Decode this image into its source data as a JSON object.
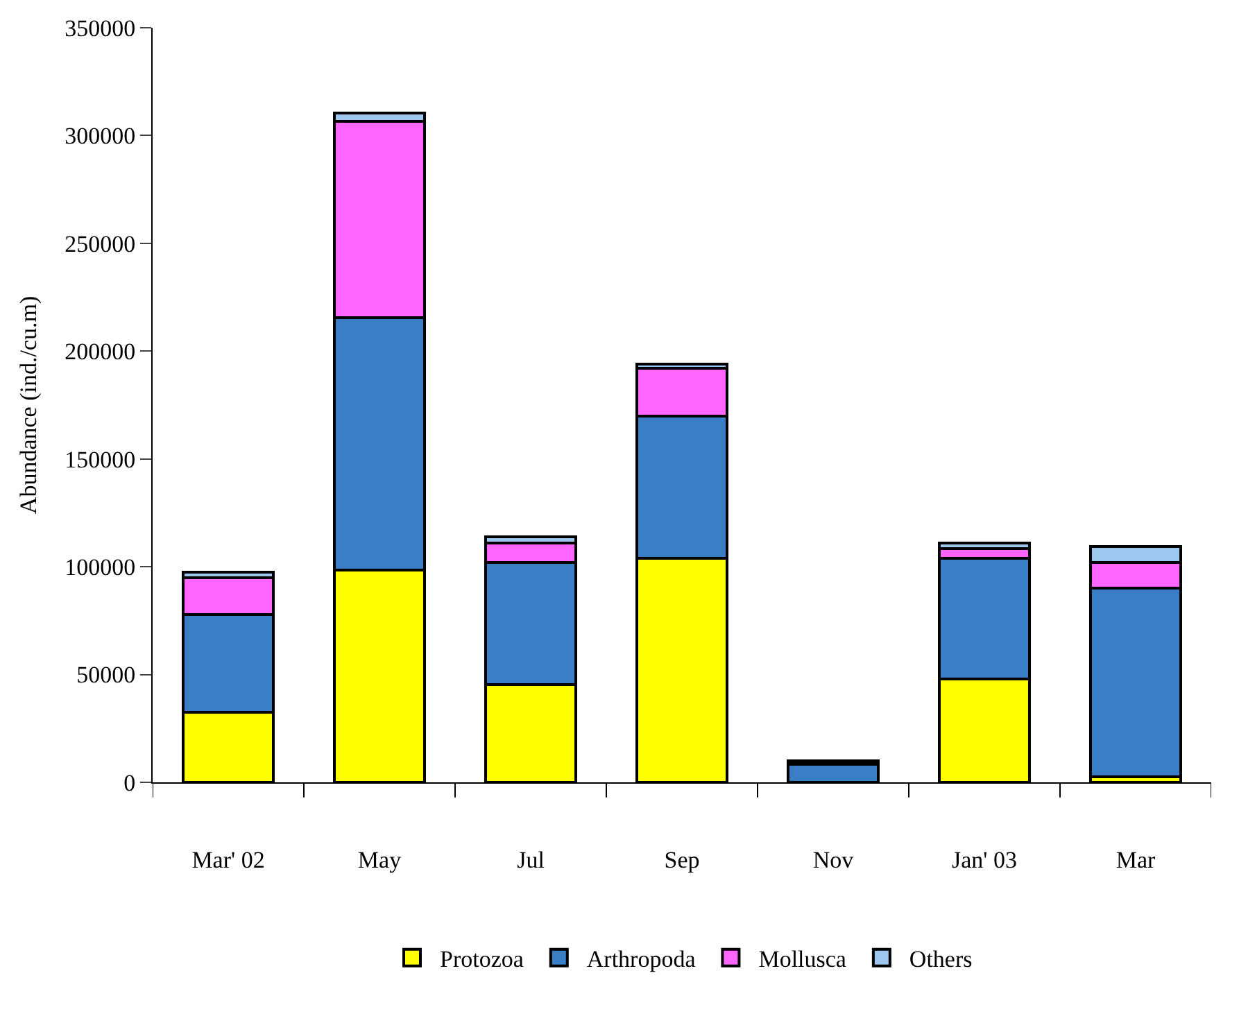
{
  "chart_data": {
    "type": "bar",
    "stacked": true,
    "ylabel": "Abundance (ind./cu.m)",
    "categories": [
      "Mar' 02",
      "May",
      "Jul",
      "Sep",
      "Nov",
      "Jan' 03",
      "Mar"
    ],
    "series": [
      {
        "name": "Protozoa",
        "color": "#ffff00",
        "values": [
          32500,
          98500,
          45500,
          104000,
          0,
          48000,
          2500
        ]
      },
      {
        "name": "Arthropoda",
        "color": "#3a7ec6",
        "values": [
          45500,
          117000,
          56500,
          66000,
          8500,
          56000,
          87500
        ]
      },
      {
        "name": "Mollusca",
        "color": "#ff66ff",
        "values": [
          17000,
          91000,
          9000,
          22000,
          500,
          4500,
          12000
        ]
      },
      {
        "name": "Others",
        "color": "#9ec7f0",
        "values": [
          2500,
          4000,
          3000,
          2000,
          1000,
          2500,
          7500
        ]
      }
    ],
    "ylim": [
      0,
      350000
    ],
    "yticks": [
      0,
      50000,
      100000,
      150000,
      200000,
      250000,
      300000,
      350000
    ],
    "legend": "bottom"
  }
}
